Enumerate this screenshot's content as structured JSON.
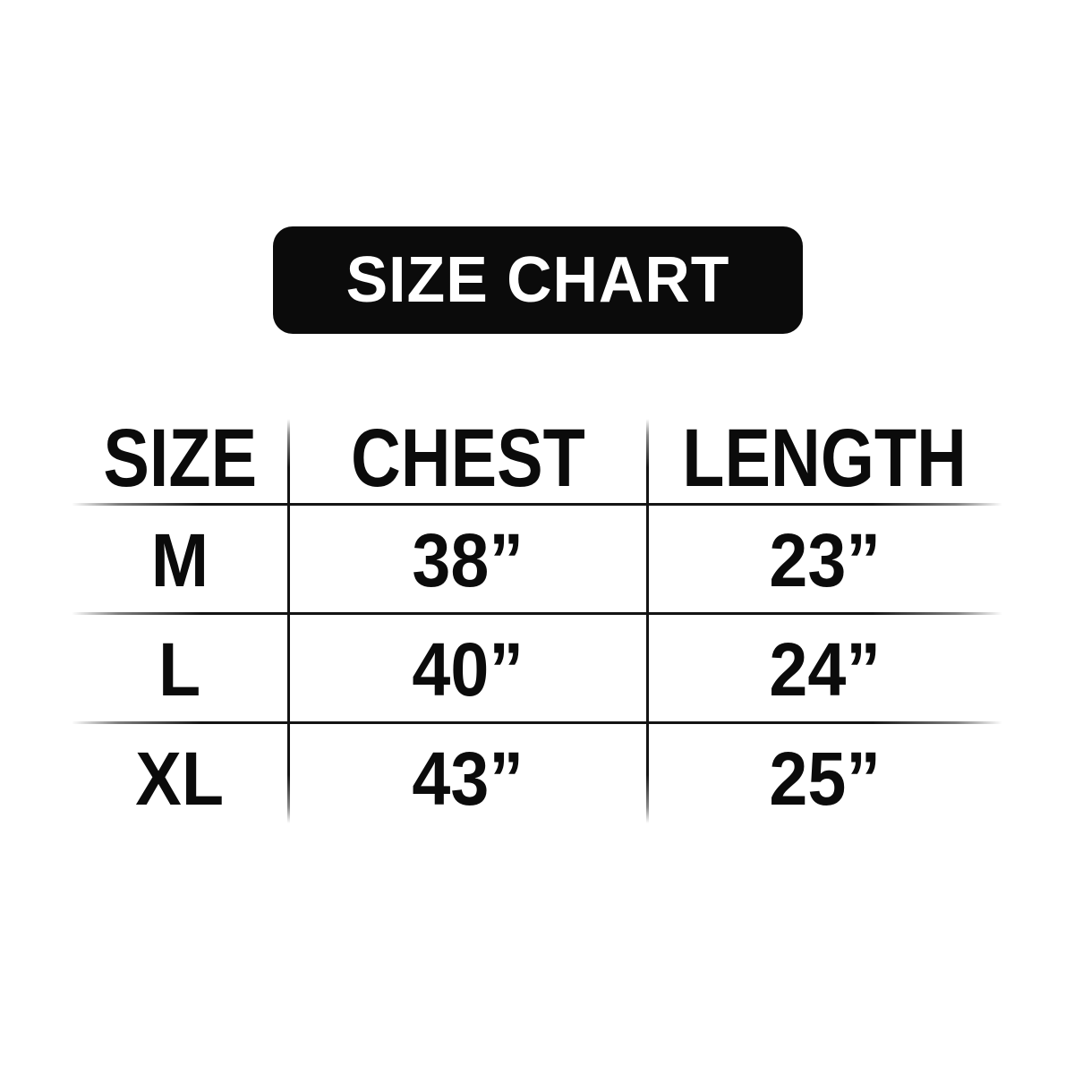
{
  "title_badge": {
    "label": "SIZE CHART"
  },
  "colors": {
    "background": "#ffffff",
    "badge_background": "#0b0b0b",
    "badge_text": "#ffffff",
    "table_text": "#0b0b0b",
    "divider_line": "#141414"
  },
  "chart_data": {
    "type": "table",
    "title": "SIZE CHART",
    "columns": [
      "SIZE",
      "CHEST",
      "LENGTH"
    ],
    "rows": [
      [
        "M",
        "38”",
        "23”"
      ],
      [
        "L",
        "40”",
        "24”"
      ],
      [
        "XL",
        "43”",
        "25”"
      ]
    ],
    "layout": {
      "outer_border": "none",
      "dividers": "horizontal lines between rows and vertical lines between columns, fading at the ends",
      "header_style": "bold condensed uppercase",
      "alignment": "all cells centered"
    }
  }
}
